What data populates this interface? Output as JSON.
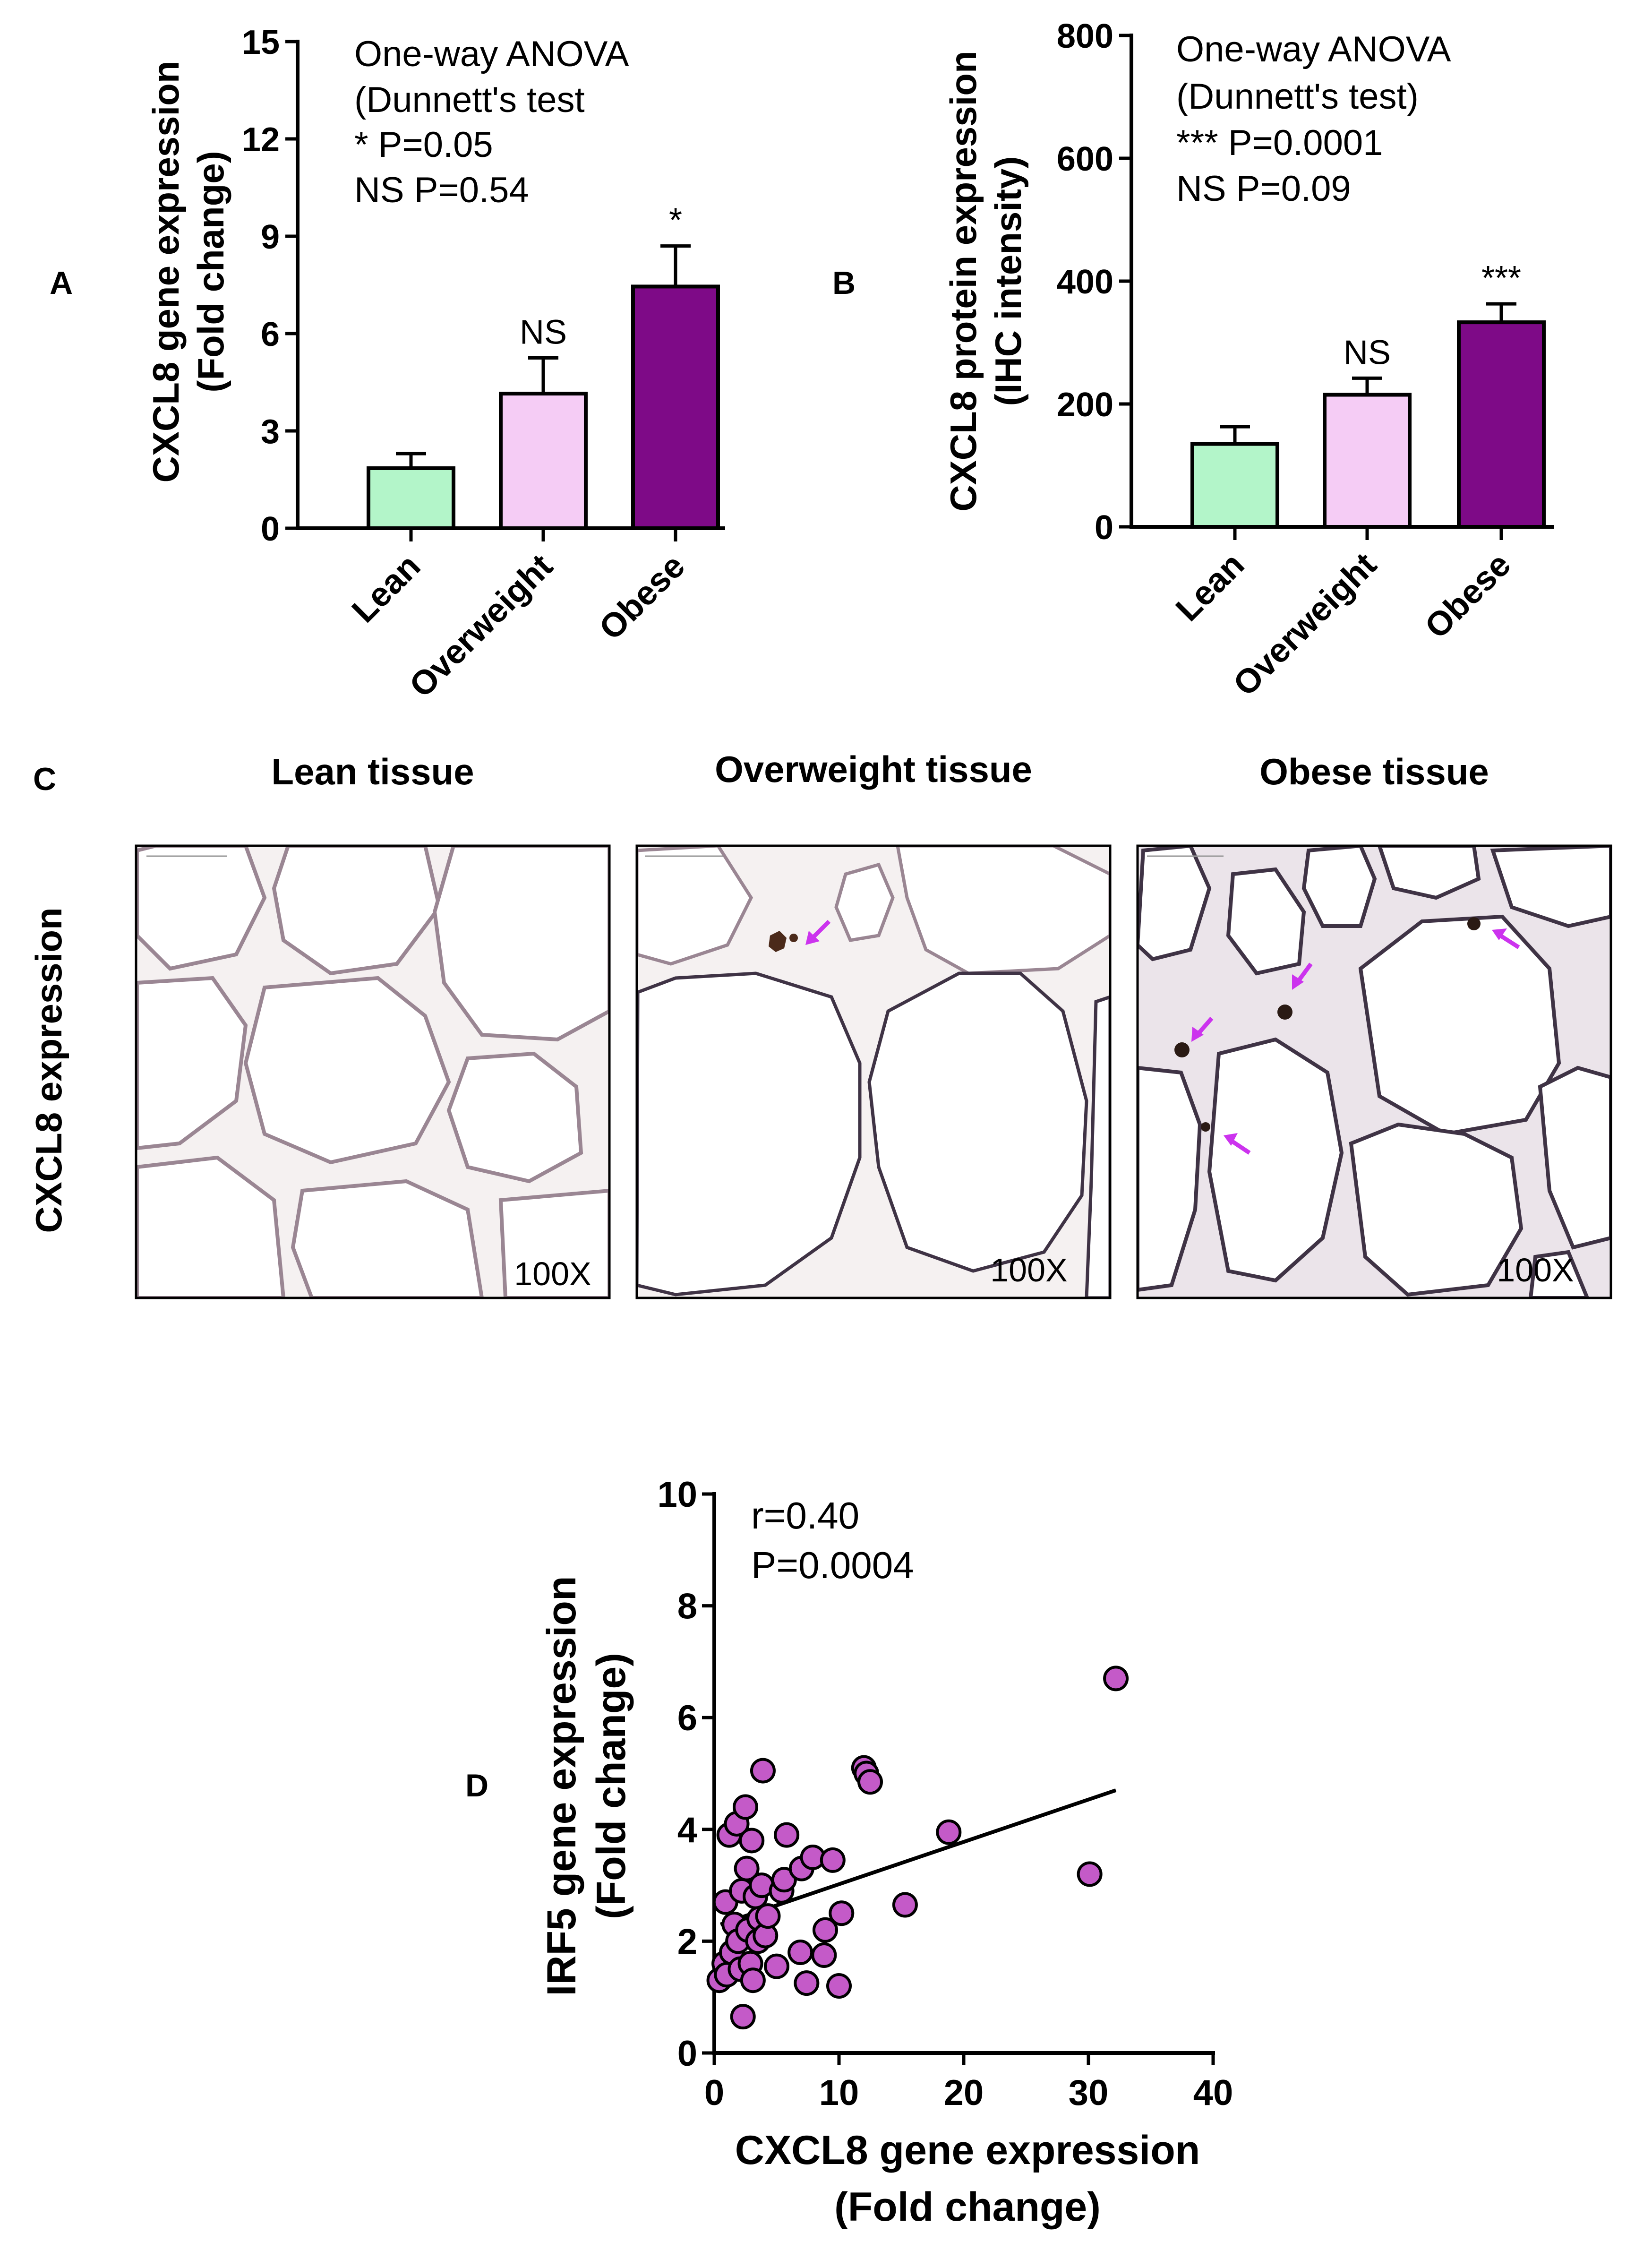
{
  "colors": {
    "lean": "#b3f5c9",
    "overweight": "#f5ccf5",
    "obese": "#7e0a87",
    "scatter_point": "#c45ac8",
    "arrow": "#cc33ee",
    "tissue_bg": "#f5f1f1",
    "membrane": "#9a8693"
  },
  "panels": {
    "a": "A",
    "b": "B",
    "c": "C",
    "d": "D"
  },
  "chart_data": [
    {
      "id": "A",
      "type": "bar",
      "categories": [
        "Lean",
        "Overweight",
        "Obese"
      ],
      "values": [
        1.85,
        4.15,
        7.45
      ],
      "errors": [
        0.45,
        1.1,
        1.25
      ],
      "significance": [
        "",
        "NS",
        "*"
      ],
      "ylim": [
        0,
        15
      ],
      "yticks": [
        "0",
        "3",
        "6",
        "9",
        "12",
        "15"
      ],
      "ylabel": "CXCL8 gene expression",
      "ylabel2": "(Fold change)",
      "annotation": [
        "One-way ANOVA",
        "(Dunnett's test",
        "* P=0.05",
        "NS P=0.54"
      ]
    },
    {
      "id": "B",
      "type": "bar",
      "categories": [
        "Lean",
        "Overweight",
        "Obese"
      ],
      "values": [
        135,
        215,
        333
      ],
      "errors": [
        28,
        27,
        30
      ],
      "significance": [
        "",
        "NS",
        "***"
      ],
      "ylim": [
        0,
        800
      ],
      "yticks": [
        "0",
        "200",
        "400",
        "600",
        "800"
      ],
      "ylabel": "CXCL8 protein expression",
      "ylabel2": "(IHC intensity)",
      "annotation": [
        "One-way ANOVA",
        "(Dunnett's test)",
        "*** P=0.0001",
        "NS P=0.09"
      ]
    },
    {
      "id": "D",
      "type": "scatter",
      "xlim": [
        0,
        40
      ],
      "ylim": [
        0,
        10
      ],
      "xticks": [
        "0",
        "10",
        "20",
        "30",
        "40"
      ],
      "yticks": [
        "0",
        "2",
        "4",
        "6",
        "8",
        "10"
      ],
      "xlabel": "CXCL8 gene expression",
      "xlabel2": "(Fold change)",
      "ylabel": "IRF5 gene expression",
      "ylabel2": "(Fold change)",
      "annotation": [
        "r=0.40",
        "P=0.0004"
      ],
      "fit": {
        "x1": 0.5,
        "y1": 2.3,
        "x2": 32.2,
        "y2": 4.7
      },
      "points": [
        [
          0.4,
          1.3
        ],
        [
          0.8,
          1.6
        ],
        [
          0.9,
          2.7
        ],
        [
          1.0,
          1.4
        ],
        [
          1.2,
          3.9
        ],
        [
          1.4,
          1.8
        ],
        [
          1.6,
          2.3
        ],
        [
          1.8,
          4.1
        ],
        [
          1.9,
          2.0
        ],
        [
          2.1,
          1.5
        ],
        [
          2.2,
          2.9
        ],
        [
          2.3,
          0.65
        ],
        [
          2.5,
          4.4
        ],
        [
          2.6,
          3.3
        ],
        [
          2.7,
          2.2
        ],
        [
          2.9,
          1.6
        ],
        [
          3.0,
          3.8
        ],
        [
          3.1,
          1.3
        ],
        [
          3.3,
          2.8
        ],
        [
          3.5,
          2.0
        ],
        [
          3.6,
          2.4
        ],
        [
          3.8,
          3.0
        ],
        [
          3.9,
          5.05
        ],
        [
          4.1,
          2.1
        ],
        [
          4.3,
          2.45
        ],
        [
          5.0,
          1.55
        ],
        [
          5.4,
          2.9
        ],
        [
          5.6,
          3.1
        ],
        [
          5.8,
          3.9
        ],
        [
          6.9,
          1.8
        ],
        [
          7.0,
          3.3
        ],
        [
          7.4,
          1.25
        ],
        [
          7.9,
          3.5
        ],
        [
          8.8,
          1.75
        ],
        [
          8.9,
          2.2
        ],
        [
          9.5,
          3.45
        ],
        [
          10.0,
          1.2
        ],
        [
          10.2,
          2.5
        ],
        [
          12.0,
          5.1
        ],
        [
          12.2,
          5.0
        ],
        [
          12.5,
          4.85
        ],
        [
          15.3,
          2.65
        ],
        [
          18.8,
          3.95
        ],
        [
          30.1,
          3.2
        ],
        [
          32.2,
          6.7
        ]
      ]
    }
  ],
  "tissue_panel": {
    "row_label": "CXCL8 expression",
    "titles": [
      "Lean tissue",
      "Overweight tissue",
      "Obese tissue"
    ],
    "magnification": [
      "100X",
      "100X",
      "100X"
    ]
  }
}
